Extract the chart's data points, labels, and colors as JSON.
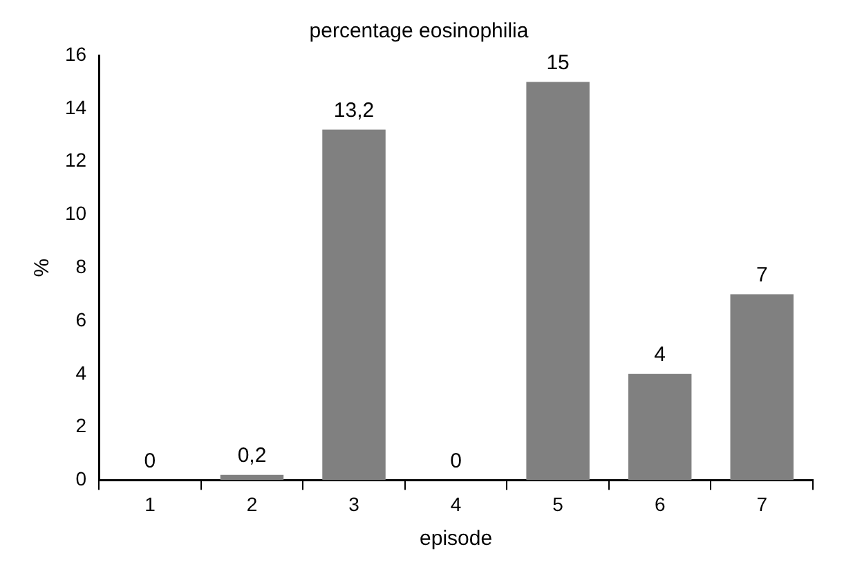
{
  "chart_data": {
    "type": "bar",
    "title": "percentage eosinophilia",
    "xlabel": "episode",
    "ylabel": "%",
    "categories": [
      "1",
      "2",
      "3",
      "4",
      "5",
      "6",
      "7"
    ],
    "values": [
      0,
      0.2,
      13.2,
      0,
      15,
      4,
      7
    ],
    "value_labels": [
      "0",
      "0,2",
      "13,2",
      "0",
      "15",
      "4",
      "7"
    ],
    "color": "#808080",
    "ylim": [
      0,
      16
    ],
    "yticks": [
      0,
      2,
      4,
      6,
      8,
      10,
      12,
      14,
      16
    ],
    "grid": false,
    "legend": false
  }
}
